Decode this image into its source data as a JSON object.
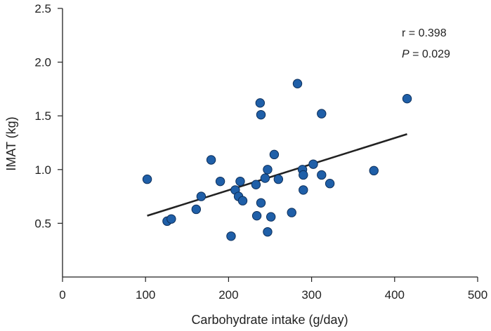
{
  "chart_data": {
    "type": "scatter",
    "title": "",
    "xlabel": "Carbohydrate intake (g/day)",
    "ylabel": "IMAT (kg)",
    "xlim": [
      0,
      500
    ],
    "ylim": [
      0,
      2.5
    ],
    "xticks": [
      0,
      100,
      200,
      300,
      400,
      500
    ],
    "yticks": [
      0.5,
      1.0,
      1.5,
      2.0,
      2.5
    ],
    "xtick_labels": [
      "0",
      "100",
      "200",
      "300",
      "400",
      "500"
    ],
    "ytick_labels": [
      "0.5",
      "1.0",
      "1.5",
      "2.0",
      "2.5"
    ],
    "grid": false,
    "marker_color": "#1f5fa8",
    "marker_edge_color": "#0d2f5a",
    "line_color": "#222222",
    "points": [
      {
        "x": 102,
        "y": 0.91
      },
      {
        "x": 126,
        "y": 0.52
      },
      {
        "x": 131,
        "y": 0.54
      },
      {
        "x": 161,
        "y": 0.63
      },
      {
        "x": 167,
        "y": 0.75
      },
      {
        "x": 179,
        "y": 1.09
      },
      {
        "x": 190,
        "y": 0.89
      },
      {
        "x": 203,
        "y": 0.38
      },
      {
        "x": 208,
        "y": 0.81
      },
      {
        "x": 212,
        "y": 0.75
      },
      {
        "x": 214,
        "y": 0.89
      },
      {
        "x": 217,
        "y": 0.71
      },
      {
        "x": 233,
        "y": 0.86
      },
      {
        "x": 234,
        "y": 0.57
      },
      {
        "x": 238,
        "y": 1.62
      },
      {
        "x": 239,
        "y": 1.51
      },
      {
        "x": 239,
        "y": 0.69
      },
      {
        "x": 244,
        "y": 0.92
      },
      {
        "x": 247,
        "y": 1.0
      },
      {
        "x": 247,
        "y": 0.42
      },
      {
        "x": 251,
        "y": 0.56
      },
      {
        "x": 255,
        "y": 1.14
      },
      {
        "x": 260,
        "y": 0.91
      },
      {
        "x": 276,
        "y": 0.6
      },
      {
        "x": 283,
        "y": 1.8
      },
      {
        "x": 289,
        "y": 1.0
      },
      {
        "x": 290,
        "y": 0.95
      },
      {
        "x": 290,
        "y": 0.81
      },
      {
        "x": 302,
        "y": 1.05
      },
      {
        "x": 312,
        "y": 1.52
      },
      {
        "x": 312,
        "y": 0.95
      },
      {
        "x": 322,
        "y": 0.87
      },
      {
        "x": 375,
        "y": 0.99
      },
      {
        "x": 415,
        "y": 1.66
      }
    ],
    "regression_line": {
      "x": [
        102,
        415
      ],
      "y": [
        0.57,
        1.33
      ]
    },
    "annotations": {
      "r_text": "r = 0.398",
      "p_symbol": "P",
      "p_rest": " = 0.029"
    }
  }
}
